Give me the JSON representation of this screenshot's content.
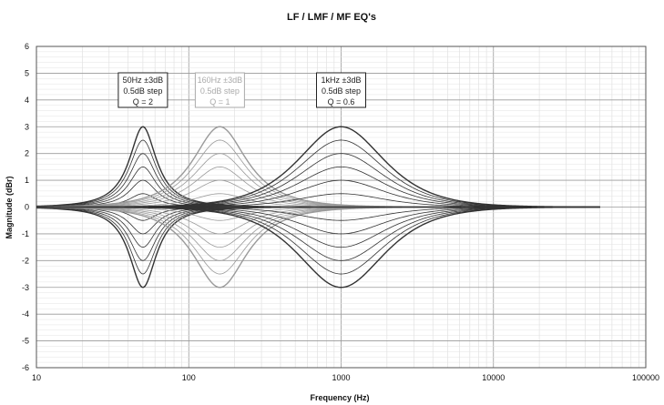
{
  "chart_data": {
    "type": "line",
    "title": "LF / LMF / MF EQ's",
    "xlabel": "Frequency (Hz)",
    "ylabel": "Magnitude (dBr)",
    "x_scale": "log",
    "xlim": [
      10,
      100000
    ],
    "ylim": [
      -6,
      6
    ],
    "x_ticks": [
      10,
      100,
      1000,
      10000,
      100000
    ],
    "x_tick_labels": [
      "10",
      "100",
      "1000",
      "10000",
      "100000"
    ],
    "y_ticks": [
      6,
      5,
      4,
      3,
      2,
      1,
      0,
      -1,
      -2,
      -3,
      -4,
      -5,
      -6
    ],
    "y_tick_labels": [
      "6",
      "5",
      "4",
      "3",
      "2",
      "1",
      "0",
      "-1",
      "-2",
      "-3",
      "-4",
      "-5",
      "-6"
    ],
    "grid": true,
    "frequency_range": [
      10,
      50000
    ],
    "gains_db": [
      3,
      2.5,
      2,
      1.5,
      1,
      0.5,
      0,
      -0.5,
      -1,
      -1.5,
      -2,
      -2.5,
      -3
    ],
    "series": [
      {
        "center_hz": 50,
        "q": 2,
        "color": "#333333",
        "label_lines": [
          "50Hz ±3dB",
          "0.5dB step",
          "Q = 2"
        ],
        "label_color": "#222222",
        "label_pos": "upper-left"
      },
      {
        "center_hz": 160,
        "q": 1,
        "color": "#9a9a9a",
        "label_lines": [
          "160Hz ±3dB",
          "0.5dB step",
          "Q = 1"
        ],
        "label_color": "#aaaaaa",
        "label_pos": "upper-center"
      },
      {
        "center_hz": 1000,
        "q": 0.6,
        "color": "#333333",
        "label_lines": [
          "1kHz ±3dB",
          "0.5dB step",
          "Q = 0.6"
        ],
        "label_color": "#222222",
        "label_pos": "upper-center"
      }
    ]
  }
}
